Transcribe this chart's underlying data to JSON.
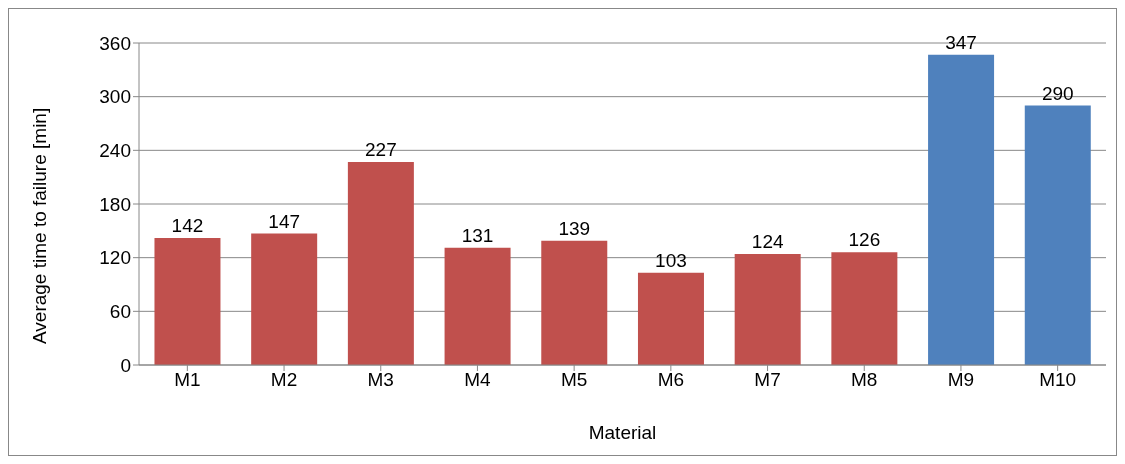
{
  "chart_data": {
    "type": "bar",
    "xlabel": "Material",
    "ylabel": "Average time to failure [min]",
    "categories": [
      "M1",
      "M2",
      "M3",
      "M4",
      "M5",
      "M6",
      "M7",
      "M8",
      "M9",
      "M10"
    ],
    "values": [
      142,
      147,
      227,
      131,
      139,
      103,
      124,
      126,
      347,
      290
    ],
    "colors": [
      "#c0504d",
      "#c0504d",
      "#c0504d",
      "#c0504d",
      "#c0504d",
      "#c0504d",
      "#c0504d",
      "#c0504d",
      "#4f81bd",
      "#4f81bd"
    ],
    "ylim": [
      0,
      360
    ],
    "yticks": [
      0,
      60,
      120,
      180,
      240,
      300,
      360
    ],
    "grid": "y",
    "data_labels": true,
    "legend": false
  }
}
